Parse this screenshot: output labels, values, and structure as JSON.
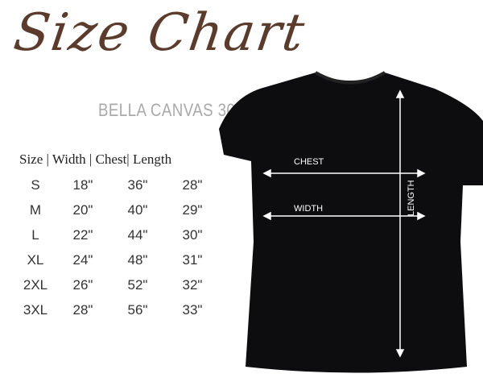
{
  "title": "Size Chart",
  "subtitle": "BELLA CANVAS 3001",
  "table": {
    "header": "Size | Width | Chest| Length",
    "rows": [
      [
        "S",
        "18\"",
        "36\"",
        "28\""
      ],
      [
        "M",
        "20\"",
        "40\"",
        "29\""
      ],
      [
        "L",
        "22\"",
        "44\"",
        "30\""
      ],
      [
        "XL",
        "24\"",
        "48\"",
        "31\""
      ],
      [
        "2XL",
        "26\"",
        "52\"",
        "32\""
      ],
      [
        "3XL",
        "28\"",
        "56\"",
        "33\""
      ]
    ]
  },
  "shirt": {
    "color": "#0d0d0f",
    "labels": {
      "chest": "CHEST",
      "width": "WIDTH",
      "length": "LENGTH"
    }
  },
  "colors": {
    "title": "#5b3b2c",
    "subtitle": "#a9a9a9"
  }
}
